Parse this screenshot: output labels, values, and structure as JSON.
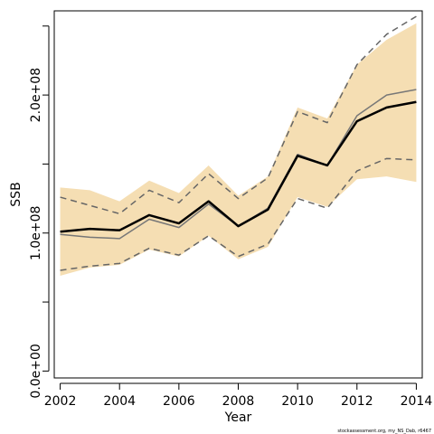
{
  "chart_data": {
    "type": "line",
    "xlabel": "Year",
    "ylabel": "SSB",
    "xlim": [
      2001.8,
      2014.2
    ],
    "ylim": [
      -5000000,
      261000000
    ],
    "x_ticks": [
      2002,
      2004,
      2006,
      2008,
      2010,
      2012,
      2014
    ],
    "y_ticks": [
      0,
      50000000,
      100000000,
      150000000,
      200000000,
      250000000
    ],
    "y_tick_labels": [
      {
        "value": 0,
        "label": "0.0e+00"
      },
      {
        "value": 100000000,
        "label": "1.0e+08"
      },
      {
        "value": 200000000,
        "label": "2.0e+08"
      }
    ],
    "x": [
      2002,
      2003,
      2004,
      2005,
      2006,
      2007,
      2008,
      2009,
      2010,
      2011,
      2012,
      2013,
      2014
    ],
    "series": [
      {
        "role": "band_upper",
        "color": "#f5deb3",
        "values": [
          133000000,
          131000000,
          123000000,
          138000000,
          129000000,
          149000000,
          127000000,
          141000000,
          191000000,
          183000000,
          222000000,
          240000000,
          252000000
        ]
      },
      {
        "role": "band_lower",
        "color": "#f5deb3",
        "values": [
          69000000,
          75000000,
          77000000,
          88000000,
          83000000,
          98000000,
          81000000,
          90000000,
          126000000,
          119000000,
          139000000,
          141000000,
          137000000
        ]
      },
      {
        "role": "upper_dashed",
        "color": "#666666",
        "values": [
          126000000,
          120000000,
          114000000,
          131000000,
          122000000,
          143000000,
          125000000,
          140000000,
          188000000,
          180000000,
          222000000,
          244000000,
          257000000
        ]
      },
      {
        "role": "lower_dashed",
        "color": "#666666",
        "values": [
          73000000,
          76000000,
          78000000,
          89000000,
          84000000,
          98000000,
          83000000,
          92000000,
          125000000,
          118000000,
          145000000,
          154000000,
          153000000
        ]
      },
      {
        "role": "grey_line",
        "color": "#777777",
        "values": [
          99000000,
          97000000,
          96000000,
          110000000,
          104000000,
          121000000,
          105000000,
          118000000,
          157000000,
          149000000,
          185000000,
          200000000,
          204000000
        ]
      },
      {
        "role": "estimate",
        "color": "#000000",
        "values": [
          101000000,
          103000000,
          102000000,
          113000000,
          107000000,
          123000000,
          105000000,
          117000000,
          156000000,
          149000000,
          181000000,
          191000000,
          195000000
        ]
      }
    ],
    "grid": false
  },
  "credit": "stockassessment.org, my_NS_Dab, r6467"
}
